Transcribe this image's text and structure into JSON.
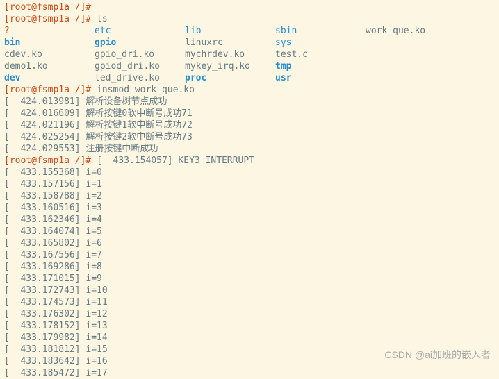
{
  "prompt_user": "root",
  "prompt_host": "fsmp1a",
  "prompt_path": "/",
  "prompt_suffix": "#",
  "cmd_ls": "ls",
  "cmd_insmod": "insmod work_que.ko",
  "ls_rows": [
    [
      {
        "text": "?",
        "cls": "red"
      },
      {
        "text": "etc",
        "cls": "blue"
      },
      {
        "text": "lib",
        "cls": "blue"
      },
      {
        "text": "sbin",
        "cls": "blue"
      },
      {
        "text": "work_que.ko",
        "cls": "gray"
      }
    ],
    [
      {
        "text": "bin",
        "cls": "blue bold"
      },
      {
        "text": "gpio",
        "cls": "blue bold"
      },
      {
        "text": "linuxrc",
        "cls": "gray"
      },
      {
        "text": "sys",
        "cls": "blue"
      },
      {
        "text": "",
        "cls": "gray"
      }
    ],
    [
      {
        "text": "cdev.ko",
        "cls": "gray"
      },
      {
        "text": "gpio_dri.ko",
        "cls": "gray"
      },
      {
        "text": "mychrdev.ko",
        "cls": "gray"
      },
      {
        "text": "test.c",
        "cls": "gray"
      },
      {
        "text": "",
        "cls": "gray"
      }
    ],
    [
      {
        "text": "demo1.ko",
        "cls": "gray"
      },
      {
        "text": "gpiod_dri.ko",
        "cls": "gray"
      },
      {
        "text": "mykey_irq.ko",
        "cls": "gray"
      },
      {
        "text": "tmp",
        "cls": "blue bold"
      },
      {
        "text": "",
        "cls": "gray"
      }
    ],
    [
      {
        "text": "dev",
        "cls": "blue bold"
      },
      {
        "text": "led_drive.ko",
        "cls": "gray"
      },
      {
        "text": "proc",
        "cls": "blue bold"
      },
      {
        "text": "usr",
        "cls": "blue bold"
      },
      {
        "text": "",
        "cls": "gray"
      }
    ]
  ],
  "dmesg1": [
    {
      "ts": "424.013981",
      "msg": "解析设备树节点成功"
    },
    {
      "ts": "424.016609",
      "msg": "解析按键0软中断号成功71"
    },
    {
      "ts": "424.021196",
      "msg": "解析按键1软中断号成功72"
    },
    {
      "ts": "424.025254",
      "msg": "解析按键2软中断号成功73"
    },
    {
      "ts": "424.029553",
      "msg": "注册按键中断成功"
    }
  ],
  "interrupt": {
    "ts": "433.154057",
    "msg": "KEY3_INTERRUPT"
  },
  "iters": [
    {
      "ts": "433.155368",
      "i": 0
    },
    {
      "ts": "433.157156",
      "i": 1
    },
    {
      "ts": "433.158788",
      "i": 2
    },
    {
      "ts": "433.160516",
      "i": 3
    },
    {
      "ts": "433.162346",
      "i": 4
    },
    {
      "ts": "433.164074",
      "i": 5
    },
    {
      "ts": "433.165802",
      "i": 6
    },
    {
      "ts": "433.167556",
      "i": 7
    },
    {
      "ts": "433.169286",
      "i": 8
    },
    {
      "ts": "433.171015",
      "i": 9
    },
    {
      "ts": "433.172743",
      "i": 10
    },
    {
      "ts": "433.174573",
      "i": 11
    },
    {
      "ts": "433.176302",
      "i": 12
    },
    {
      "ts": "433.178152",
      "i": 13
    },
    {
      "ts": "433.179982",
      "i": 14
    },
    {
      "ts": "433.181812",
      "i": 15
    },
    {
      "ts": "433.183642",
      "i": 16
    },
    {
      "ts": "433.185472",
      "i": 17
    }
  ],
  "watermark": "CSDN @ai加班的嵌入者"
}
